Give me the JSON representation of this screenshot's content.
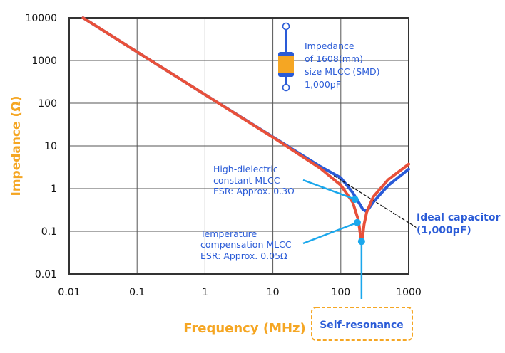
{
  "chart_data": {
    "type": "line",
    "xlabel": "Frequency (MHz)",
    "ylabel": "Impedance (Ω)",
    "xscale": "log",
    "yscale": "log",
    "xlim": [
      0.01,
      1000
    ],
    "ylim": [
      0.01,
      10000
    ],
    "grid": true,
    "x_ticks": [
      "0.01",
      "0.1",
      "1",
      "10",
      "100",
      "1000"
    ],
    "y_ticks": [
      "10000",
      "1000",
      "100",
      "10",
      "1",
      "0.1",
      "0.01"
    ],
    "series": [
      {
        "label": "Temperature compensation MLCC",
        "color": "#e8503a",
        "x": [
          0.016,
          0.1,
          1,
          10,
          50,
          100,
          150,
          180,
          190,
          200,
          210,
          220,
          240,
          300,
          500,
          1000
        ],
        "y": [
          9947,
          1592,
          159,
          15.9,
          2.99,
          1.2,
          0.477,
          0.19,
          0.11,
          0.053,
          0.078,
          0.143,
          0.277,
          0.638,
          1.63,
          3.74
        ]
      },
      {
        "label": "High-dielectric constant MLCC",
        "color": "#2a5bd7",
        "x": [
          0.016,
          0.1,
          1,
          10,
          50,
          100,
          150,
          180,
          200,
          210,
          230,
          250,
          260,
          300,
          500,
          1000
        ],
        "y": [
          9947,
          1592,
          159,
          16.2,
          3.3,
          1.8,
          0.8,
          0.5,
          0.38,
          0.33,
          0.3,
          0.32,
          0.345,
          0.478,
          1.19,
          2.85
        ]
      },
      {
        "label": "Ideal capacitor (1,000pF)",
        "style": "dashed",
        "color": "#111111",
        "x": [
          80,
          1000
        ],
        "y": [
          1.99,
          0.159
        ]
      }
    ],
    "markers": [
      {
        "x": 162,
        "y": 0.56,
        "color": "#1aa7ec"
      },
      {
        "x": 175,
        "y": 0.16,
        "color": "#1aa7ec"
      },
      {
        "x": 202,
        "y": 0.058,
        "color": "#1aa7ec"
      }
    ],
    "annotations": {
      "legend_box": [
        "Impedance",
        "of 1608(mm)",
        "size MLCC (SMD)",
        "1,000pF"
      ],
      "high_dielectric": [
        "High-dielectric",
        "constant MLCC",
        "ESR: Approx. 0.3Ω"
      ],
      "temperature": [
        "Temperature",
        "compensation MLCC",
        "ESR: Approx. 0.05Ω"
      ],
      "ideal": [
        "Ideal capacitor",
        "(1,000pF)"
      ],
      "self_resonance": "Self-resonance"
    },
    "colors": {
      "accent_orange": "#f5a623",
      "callout": "#1aa7ec",
      "text_blue": "#2a5bd7"
    }
  }
}
